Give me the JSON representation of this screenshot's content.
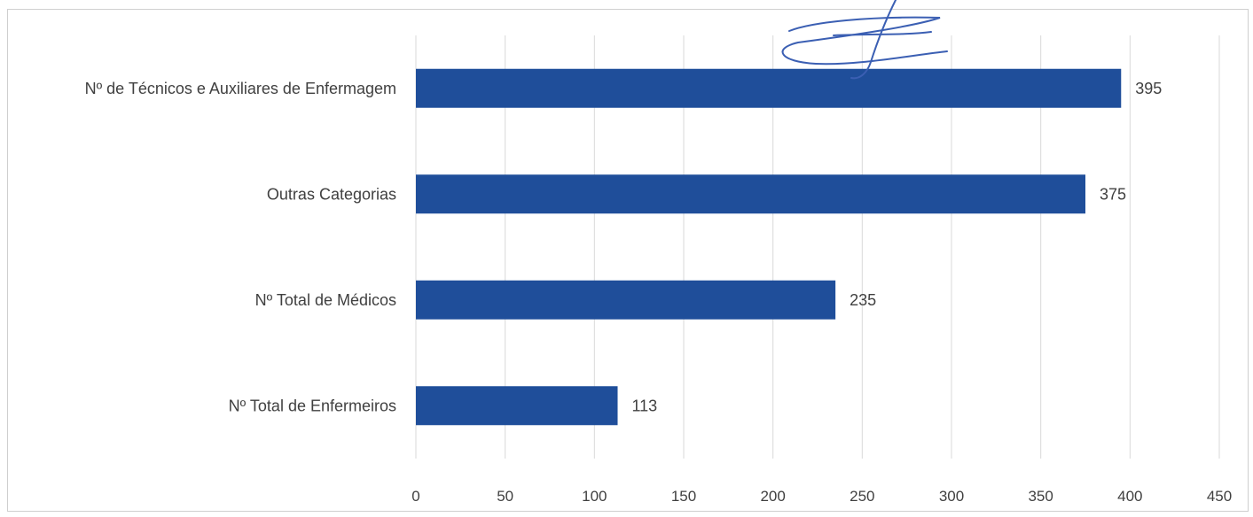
{
  "chart_data": {
    "type": "bar",
    "orientation": "horizontal",
    "categories": [
      "Nº de Técnicos e Auxiliares de Enfermagem",
      "Outras Categorias",
      "Nº Total de Médicos",
      "Nº Total de Enfermeiros"
    ],
    "values": [
      395,
      375,
      235,
      113
    ],
    "data_labels": [
      "395",
      "375",
      "235",
      "113"
    ],
    "x_ticks": [
      "0",
      "50",
      "100",
      "150",
      "200",
      "250",
      "300",
      "350",
      "400",
      "450"
    ],
    "xlim": [
      0,
      450
    ],
    "title": "",
    "xlabel": "",
    "ylabel": "",
    "grid": "vertical",
    "legend": "none",
    "bar_color": "#1f4e9a",
    "signature": "handwritten-signature"
  }
}
